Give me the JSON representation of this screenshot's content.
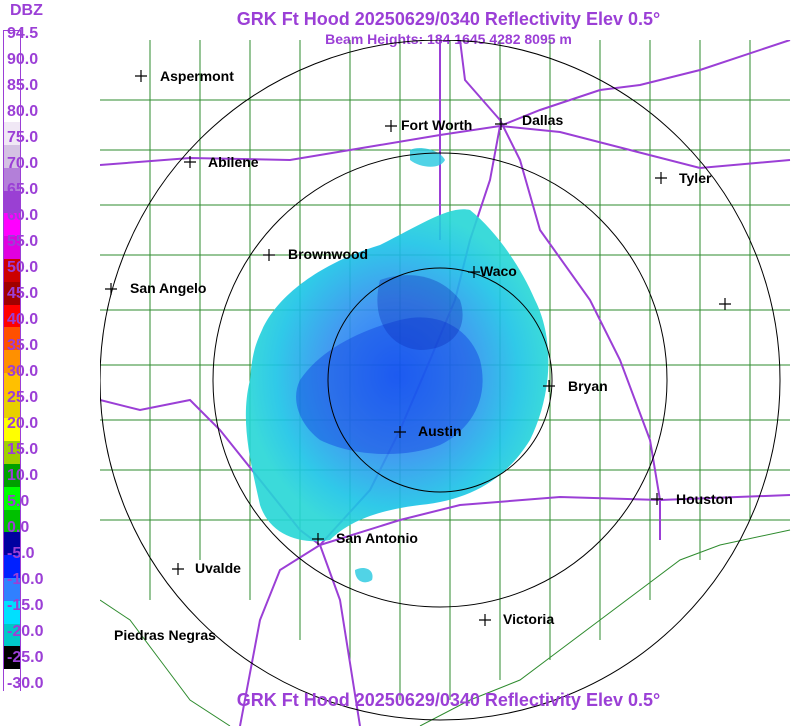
{
  "header": {
    "title": "GRK Ft Hood 20250629/0340 Reflectivity Elev 0.5°",
    "subtitle": "Beam Heights: 184 1645 4282 8095 m",
    "footer_title": "GRK Ft Hood 20250629/0340 Reflectivity Elev 0.5°"
  },
  "legend": {
    "title": "DBZ",
    "labels": [
      "94.5",
      "90.0",
      "85.0",
      "80.0",
      "75.0",
      "70.0",
      "65.0",
      "60.0",
      "55.0",
      "50.0",
      "45.0",
      "40.0",
      "35.0",
      "30.0",
      "25.0",
      "20.0",
      "15.0",
      "10.0",
      "5.0",
      "0.0",
      "-5.0",
      "-10.0",
      "-15.0",
      "-20.0",
      "-25.0",
      "-30.0"
    ],
    "colors": [
      "#ffffff",
      "#ffffff",
      "#ffffff",
      "#ffffff",
      "#f0e8f5",
      "#d4c2e3",
      "#b37fd9",
      "#9a40d3",
      "#ff00ff",
      "#e000e0",
      "#cc0000",
      "#a00000",
      "#ff0000",
      "#ff5000",
      "#ff9000",
      "#ffc000",
      "#e8d000",
      "#ffff00",
      "#a0d000",
      "#00a000",
      "#00ff00",
      "#00c000",
      "#0000a0",
      "#0020ff",
      "#3080ff",
      "#00e0ff",
      "#00c8c8",
      "#000000",
      "#ffffff"
    ],
    "accent_color": "#9b3fd6"
  },
  "map": {
    "cities": [
      "Aspermont",
      "Abilene",
      "Fort Worth",
      "Dallas",
      "Tyler",
      "Brownwood",
      "Waco",
      "San Angelo",
      "Bryan",
      "Austin",
      "Houston",
      "San Antonio",
      "Uvalde",
      "Victoria",
      "Piedras Negras"
    ],
    "boundary_color": "#2e8b2e",
    "highway_color": "#9b3fd6",
    "ring_color": "#000000"
  }
}
